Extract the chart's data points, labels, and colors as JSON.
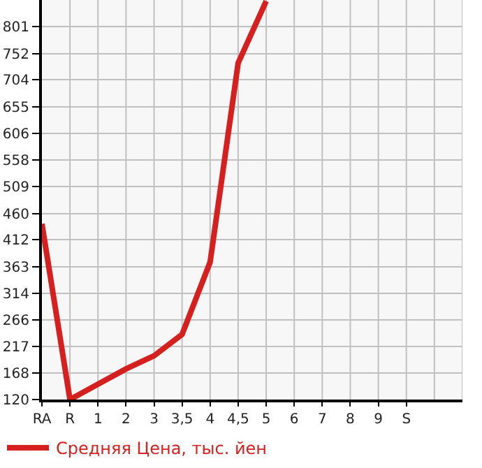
{
  "chart_data": {
    "type": "line",
    "categories": [
      "RA",
      "R",
      "1",
      "2",
      "3",
      "3,5",
      "4",
      "4,5",
      "5",
      "6",
      "7",
      "8",
      "9",
      "S",
      null,
      null
    ],
    "series": [
      {
        "name": "Средняя Цена, тыс. йен",
        "color": "#d61f1f",
        "values": [
          441,
          120,
          148,
          176,
          200,
          239,
          371,
          735,
          848,
          null,
          null,
          null,
          null,
          null,
          null,
          null
        ]
      }
    ],
    "ylim": [
      120,
      850
    ],
    "yticks": [
      120,
      168,
      217,
      266,
      314,
      363,
      412,
      460,
      509,
      558,
      606,
      655,
      704,
      752,
      801
    ],
    "grid": true,
    "legend": "bottom left",
    "marker": "none",
    "line_style": "solid"
  }
}
